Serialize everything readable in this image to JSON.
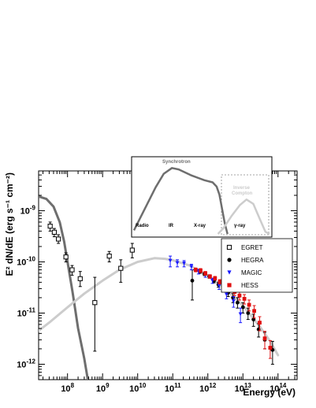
{
  "chart_data": {
    "type": "scatter",
    "xlabel": "Energy (eV)",
    "ylabel": "E² dN/dE (erg s⁻¹ cm⁻²)",
    "xscale": "log",
    "yscale": "log",
    "xlim": [
      15000000,
      350000000000000
    ],
    "ylim": [
      5e-13,
      6e-09
    ],
    "x_ticks": [
      {
        "value": 100000000.0,
        "base": "10",
        "exp": "8"
      },
      {
        "value": 1000000000.0,
        "base": "10",
        "exp": "9"
      },
      {
        "value": 10000000000.0,
        "base": "10",
        "exp": "10"
      },
      {
        "value": 100000000000.0,
        "base": "10",
        "exp": "11"
      },
      {
        "value": 1000000000000.0,
        "base": "10",
        "exp": "12"
      },
      {
        "value": 10000000000000.0,
        "base": "10",
        "exp": "13"
      },
      {
        "value": 100000000000000.0,
        "base": "10",
        "exp": "14"
      }
    ],
    "y_ticks": [
      {
        "value": 1e-09,
        "base": "10",
        "exp": "-9"
      },
      {
        "value": 1e-10,
        "base": "10",
        "exp": "-10"
      },
      {
        "value": 1e-11,
        "base": "10",
        "exp": "-11"
      },
      {
        "value": 1e-12,
        "base": "10",
        "exp": "-12"
      }
    ],
    "legend_position": "right",
    "series": [
      {
        "name": "EGRET",
        "marker": "open-square",
        "color": "#000000",
        "points": [
          {
            "x": 32000000.0,
            "y": 5e-10,
            "lo": 4e-10,
            "hi": 6e-10
          },
          {
            "x": 42000000.0,
            "y": 3.8e-10,
            "lo": 3.1e-10,
            "hi": 4.5e-10
          },
          {
            "x": 55000000.0,
            "y": 2.8e-10,
            "lo": 2.3e-10,
            "hi": 3.4e-10
          },
          {
            "x": 90000000.0,
            "y": 1.25e-10,
            "lo": 1e-10,
            "hi": 1.5e-10
          },
          {
            "x": 135000000.0,
            "y": 7e-11,
            "lo": 5.5e-11,
            "hi": 8.5e-11
          },
          {
            "x": 230000000.0,
            "y": 4.7e-11,
            "lo": 3.3e-11,
            "hi": 6.5e-11
          },
          {
            "x": 600000000.0,
            "y": 1.6e-11,
            "lo": 1.8e-12,
            "hi": 5e-11
          },
          {
            "x": 1550000000.0,
            "y": 1.3e-10,
            "lo": 1e-10,
            "hi": 1.6e-10
          },
          {
            "x": 3300000000.0,
            "y": 7.5e-11,
            "lo": 4e-11,
            "hi": 1.1e-10
          },
          {
            "x": 7000000000.0,
            "y": 1.7e-10,
            "lo": 1.2e-10,
            "hi": 2.3e-10
          }
        ]
      },
      {
        "name": "HEGRA",
        "marker": "filled-circle",
        "color": "#000000",
        "points": [
          {
            "x": 360000000000.0,
            "y": 4.3e-11,
            "lo": 1.8e-11,
            "hi": 7e-11
          },
          {
            "x": 600000000000.0,
            "y": 6.4e-11,
            "lo": 6e-11,
            "hi": 6.8e-11
          },
          {
            "x": 800000000000.0,
            "y": 5.8e-11,
            "lo": 5.4e-11,
            "hi": 6.2e-11
          },
          {
            "x": 1100000000000.0,
            "y": 5.2e-11,
            "lo": 4.8e-11,
            "hi": 5.6e-11
          },
          {
            "x": 1500000000000.0,
            "y": 4.3e-11,
            "lo": 3.9e-11,
            "hi": 4.7e-11
          },
          {
            "x": 2000000000000.0,
            "y": 3.6e-11,
            "lo": 3.2e-11,
            "hi": 4e-11
          },
          {
            "x": 2800000000000.0,
            "y": 3e-11,
            "lo": 2.6e-11,
            "hi": 3.4e-11
          },
          {
            "x": 3800000000000.0,
            "y": 2.5e-11,
            "lo": 2.1e-11,
            "hi": 2.9e-11
          },
          {
            "x": 5200000000000.0,
            "y": 2e-11,
            "lo": 1.6e-11,
            "hi": 2.4e-11
          },
          {
            "x": 7000000000000.0,
            "y": 1.6e-11,
            "lo": 1.25e-11,
            "hi": 2e-11
          },
          {
            "x": 10000000000000.0,
            "y": 1.3e-11,
            "lo": 1e-11,
            "hi": 1.6e-11
          },
          {
            "x": 14000000000000.0,
            "y": 1e-11,
            "lo": 7.5e-12,
            "hi": 1.25e-11
          },
          {
            "x": 20000000000000.0,
            "y": 7.5e-12,
            "lo": 5.5e-12,
            "hi": 9.5e-12
          },
          {
            "x": 28000000000000.0,
            "y": 4.8e-12,
            "lo": 3.4e-12,
            "hi": 6.2e-12
          },
          {
            "x": 42000000000000.0,
            "y": 3e-12,
            "lo": 2e-12,
            "hi": 4.2e-12
          },
          {
            "x": 70000000000000.0,
            "y": 1.9e-12,
            "lo": 1e-12,
            "hi": 2.8e-12
          }
        ]
      },
      {
        "name": "MAGIC",
        "marker": "filled-triangle-down",
        "color": "#1a1aff",
        "points": [
          {
            "x": 85000000000.0,
            "y": 1.05e-10,
            "lo": 8e-11,
            "hi": 1.3e-10
          },
          {
            "x": 135000000000.0,
            "y": 9.5e-11,
            "lo": 8e-11,
            "hi": 1.1e-10
          },
          {
            "x": 210000000000.0,
            "y": 9.3e-11,
            "lo": 8e-11,
            "hi": 1.06e-10
          },
          {
            "x": 340000000000.0,
            "y": 8e-11,
            "lo": 7e-11,
            "hi": 9e-11
          },
          {
            "x": 540000000000.0,
            "y": 6.5e-11,
            "lo": 5.8e-11,
            "hi": 7.2e-11
          },
          {
            "x": 850000000000.0,
            "y": 5.6e-11,
            "lo": 5e-11,
            "hi": 6.2e-11
          },
          {
            "x": 1350000000000.0,
            "y": 4.3e-11,
            "lo": 3.8e-11,
            "hi": 4.8e-11
          },
          {
            "x": 2100000000000.0,
            "y": 3.4e-11,
            "lo": 2.9e-11,
            "hi": 3.9e-11
          },
          {
            "x": 3400000000000.0,
            "y": 2.3e-11,
            "lo": 1.9e-11,
            "hi": 2.7e-11
          },
          {
            "x": 5400000000000.0,
            "y": 1.7e-11,
            "lo": 1.3e-11,
            "hi": 2.1e-11
          },
          {
            "x": 8500000000000.0,
            "y": 9.5e-12,
            "lo": 6.5e-12,
            "hi": 1.25e-11
          }
        ]
      },
      {
        "name": "HESS",
        "marker": "filled-square",
        "color": "#e01010",
        "points": [
          {
            "x": 450000000000.0,
            "y": 7e-11,
            "lo": 6.4e-11,
            "hi": 7.6e-11
          },
          {
            "x": 620000000000.0,
            "y": 6.8e-11,
            "lo": 6.2e-11,
            "hi": 7.4e-11
          },
          {
            "x": 850000000000.0,
            "y": 6e-11,
            "lo": 5.5e-11,
            "hi": 6.5e-11
          },
          {
            "x": 1150000000000.0,
            "y": 5.2e-11,
            "lo": 4.8e-11,
            "hi": 5.6e-11
          },
          {
            "x": 1600000000000.0,
            "y": 4.8e-11,
            "lo": 4.4e-11,
            "hi": 5.2e-11
          },
          {
            "x": 2200000000000.0,
            "y": 4.1e-11,
            "lo": 3.7e-11,
            "hi": 4.5e-11
          },
          {
            "x": 3000000000000.0,
            "y": 3.5e-11,
            "lo": 3.1e-11,
            "hi": 3.9e-11
          },
          {
            "x": 4200000000000.0,
            "y": 3e-11,
            "lo": 2.6e-11,
            "hi": 3.4e-11
          },
          {
            "x": 5800000000000.0,
            "y": 2.6e-11,
            "lo": 2.2e-11,
            "hi": 3e-11
          },
          {
            "x": 8000000000000.0,
            "y": 2.2e-11,
            "lo": 1.8e-11,
            "hi": 2.6e-11
          },
          {
            "x": 11000000000000.0,
            "y": 1.9e-11,
            "lo": 1.5e-11,
            "hi": 2.3e-11
          },
          {
            "x": 15000000000000.0,
            "y": 1.45e-11,
            "lo": 1.1e-11,
            "hi": 1.8e-11
          },
          {
            "x": 21000000000000.0,
            "y": 1.1e-11,
            "lo": 8e-12,
            "hi": 1.4e-11
          },
          {
            "x": 30000000000000.0,
            "y": 6.5e-12,
            "lo": 4.5e-12,
            "hi": 8.5e-12
          },
          {
            "x": 42000000000000.0,
            "y": 3.2e-12,
            "lo": 2e-12,
            "hi": 4.4e-12
          },
          {
            "x": 60000000000000.0,
            "y": 2.1e-12,
            "lo": 1.3e-12,
            "hi": 2.9e-12
          }
        ]
      }
    ],
    "model_curves": [
      {
        "color": "#6e6e6e",
        "points": [
          [
            15000000.0,
            1.9e-09
          ],
          [
            25000000.0,
            1.7e-09
          ],
          [
            40000000.0,
            1.2e-09
          ],
          [
            60000000.0,
            6e-10
          ],
          [
            80000000.0,
            2.5e-10
          ],
          [
            100000000.0,
            1e-10
          ],
          [
            140000000.0,
            2.5e-11
          ],
          [
            200000000.0,
            5e-12
          ],
          [
            300000000.0,
            1.3e-12
          ],
          [
            400000000.0,
            4e-13
          ]
        ]
      },
      {
        "color": "#cccccc",
        "points": [
          [
            15000000.0,
            4.5e-12
          ],
          [
            30000000.0,
            6.5e-12
          ],
          [
            100000000.0,
            1.3e-11
          ],
          [
            300000000.0,
            2.4e-11
          ],
          [
            1000000000.0,
            4.3e-11
          ],
          [
            3000000000.0,
            7e-11
          ],
          [
            10000000000.0,
            1e-10
          ],
          [
            30000000000.0,
            1.18e-10
          ],
          [
            60000000000.0,
            1.15e-10
          ],
          [
            100000000000.0,
            1.08e-10
          ],
          [
            300000000000.0,
            8.5e-11
          ],
          [
            1000000000000.0,
            5.4e-11
          ],
          [
            3000000000000.0,
            3.1e-11
          ],
          [
            10000000000000.0,
            1.4e-11
          ],
          [
            30000000000000.0,
            5.5e-12
          ],
          [
            60000000000000.0,
            2.8e-12
          ],
          [
            100000000000000.0,
            1.5e-12
          ]
        ]
      }
    ],
    "inset": {
      "labels": {
        "synchrotron": "Synchrotron",
        "inverse": "Inverse",
        "compton": "Compton",
        "radio": "Radio",
        "ir": "IR",
        "xray": "X-ray",
        "gammaray": "γ-ray"
      },
      "synchrotron_curve": [
        [
          0.0,
          0.05
        ],
        [
          0.08,
          0.35
        ],
        [
          0.16,
          0.65
        ],
        [
          0.22,
          0.84
        ],
        [
          0.28,
          0.92
        ],
        [
          0.33,
          0.9
        ],
        [
          0.42,
          0.82
        ],
        [
          0.52,
          0.75
        ],
        [
          0.58,
          0.72
        ],
        [
          0.61,
          0.66
        ],
        [
          0.63,
          0.55
        ],
        [
          0.65,
          0.35
        ],
        [
          0.67,
          0.15
        ],
        [
          0.69,
          0.0
        ]
      ],
      "compton_curve": [
        [
          0.62,
          0.0
        ],
        [
          0.66,
          0.08
        ],
        [
          0.72,
          0.25
        ],
        [
          0.78,
          0.4
        ],
        [
          0.83,
          0.48
        ],
        [
          0.88,
          0.42
        ],
        [
          0.93,
          0.2
        ],
        [
          0.97,
          0.03
        ],
        [
          1.0,
          0.0
        ]
      ],
      "curve_colors": {
        "synchrotron": "#6e6e6e",
        "compton": "#cccccc"
      }
    }
  }
}
